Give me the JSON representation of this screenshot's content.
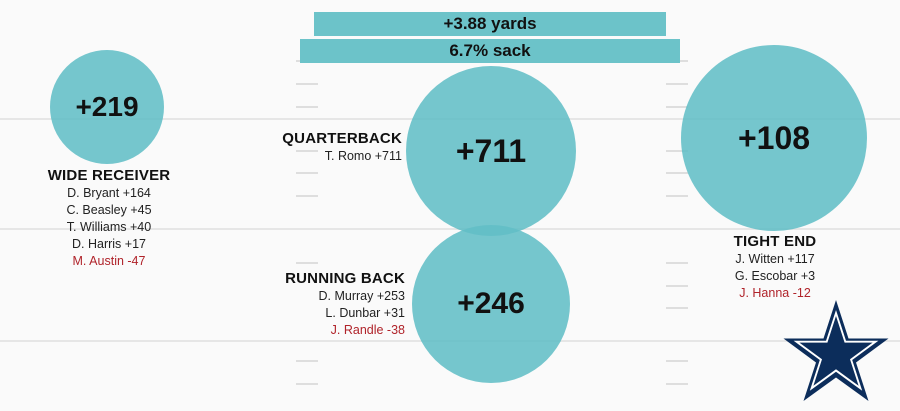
{
  "colors": {
    "circle": "#62bec6",
    "negative": "#b0232a",
    "star_navy": "#0c2d5b",
    "star_outline": "#ffffff"
  },
  "team_logo": "star-icon",
  "stats": {
    "yards": "+3.88 yards",
    "sack": "6.7% sack"
  },
  "positions": {
    "wide_receiver": {
      "title": "WIDE RECEIVER",
      "total": "+219",
      "players": [
        {
          "text": "D. Bryant +164",
          "negative": false
        },
        {
          "text": "C. Beasley +45",
          "negative": false
        },
        {
          "text": "T. Williams +40",
          "negative": false
        },
        {
          "text": "D. Harris +17",
          "negative": false
        },
        {
          "text": "M. Austin -47",
          "negative": true
        }
      ]
    },
    "quarterback": {
      "title": "QUARTERBACK",
      "total": "+711",
      "players": [
        {
          "text": "T. Romo +711",
          "negative": false
        }
      ]
    },
    "running_back": {
      "title": "RUNNING BACK",
      "total": "+246",
      "players": [
        {
          "text": "D. Murray +253",
          "negative": false
        },
        {
          "text": "L. Dunbar +31",
          "negative": false
        },
        {
          "text": "J. Randle -38",
          "negative": true
        }
      ]
    },
    "tight_end": {
      "title": "TIGHT END",
      "total": "+108",
      "players": [
        {
          "text": "J. Witten +117",
          "negative": false
        },
        {
          "text": "G. Escobar +3",
          "negative": false
        },
        {
          "text": "J. Hanna -12",
          "negative": true
        }
      ]
    }
  }
}
